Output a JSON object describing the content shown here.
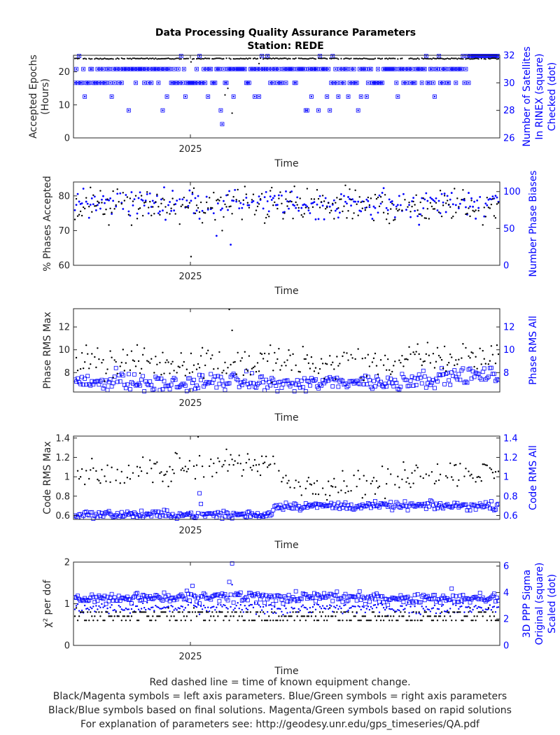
{
  "figure": {
    "title_line1": "Data Processing Quality Assurance Parameters",
    "title_line2": "Station: REDE"
  },
  "colors": {
    "left": "#000000",
    "right": "#0000ff",
    "axis": "#262626"
  },
  "chart_data": [
    {
      "type": "scatter",
      "id": "epochs",
      "xlabel": "Time",
      "xticks": [
        "2025"
      ],
      "left": {
        "label": [
          "Accepted Epochs",
          "(Hours)"
        ],
        "ylim": [
          0,
          25
        ],
        "ticks": [
          0,
          10,
          20
        ],
        "marker": "dot",
        "mean": 24,
        "noise": 0.1,
        "dips": [
          23,
          22.5,
          15,
          7.5,
          13
        ]
      },
      "right": {
        "label": [
          "Number of Satellites",
          "In RINEX (square)",
          "Checked (dot)"
        ],
        "ylim": [
          26,
          32
        ],
        "ticks": [
          26,
          28,
          30,
          32
        ],
        "marker": "dot-and-square",
        "levels": [
          31,
          30,
          29,
          28,
          32
        ]
      }
    },
    {
      "type": "scatter",
      "id": "phases",
      "xlabel": "Time",
      "xticks": [
        "2025"
      ],
      "left": {
        "label": [
          "% Phases Accepted"
        ],
        "ylim": [
          60,
          84
        ],
        "ticks": [
          60,
          70,
          80
        ],
        "marker": "dot",
        "mean": 77,
        "noise": 2.5,
        "dips": [
          62.5,
          70,
          72
        ]
      },
      "right": {
        "label": [
          "Number Phase Biases"
        ],
        "ylim": [
          0,
          113
        ],
        "ticks": [
          0,
          50,
          100
        ],
        "marker": "dot",
        "mean": 85,
        "noise": 9,
        "dips": [
          28,
          40,
          55
        ]
      }
    },
    {
      "type": "scatter",
      "id": "phase-rms",
      "xlabel": "Time",
      "xticks": [
        "2025"
      ],
      "left": {
        "label": [
          "Phase RMS Max"
        ],
        "ylim": [
          6.3,
          13.6
        ],
        "ticks": [
          8,
          10,
          12
        ],
        "marker": "dot",
        "mean": 8.9,
        "noise": 0.7,
        "dips": [
          13.6,
          11.7,
          11.5
        ]
      },
      "right": {
        "label": [
          "Phase RMS All"
        ],
        "ylim": [
          6.3,
          13.6
        ],
        "ticks": [
          8,
          10,
          12
        ],
        "marker": "square",
        "mean": 7.1,
        "noise": 0.35,
        "dips": [
          8.4,
          8.2
        ]
      }
    },
    {
      "type": "scatter",
      "id": "code-rms",
      "xlabel": "Time",
      "xticks": [
        "2025"
      ],
      "left": {
        "label": [
          "Code RMS Max"
        ],
        "ylim": [
          0.56,
          1.42
        ],
        "ticks": [
          0.6,
          0.8,
          1,
          1.2,
          1.4
        ],
        "marker": "dot",
        "mean": 1.03,
        "noise": 0.07,
        "dips": [
          1.42,
          1.25,
          0.82
        ]
      },
      "right": {
        "label": [
          "Code RMS All"
        ],
        "ylim": [
          0.56,
          1.42
        ],
        "ticks": [
          0.6,
          0.8,
          1,
          1.2,
          1.4
        ],
        "marker": "square",
        "mean": 0.66,
        "noise": 0.02,
        "dips": [
          0.83,
          0.72,
          0.57
        ]
      }
    },
    {
      "type": "scatter",
      "id": "chi2",
      "xlabel": "Time",
      "xticks": [
        "2025"
      ],
      "left": {
        "label": [
          "χ² per dof"
        ],
        "ylim": [
          0,
          2
        ],
        "ticks": [
          0,
          1,
          2
        ],
        "marker": "dot",
        "mean": 0.72,
        "noise": 0.06,
        "dips": [
          0.9,
          0.6
        ]
      },
      "right": {
        "label": [
          "3D PPP Sigma",
          "Original (square)",
          "Scaled (dot)"
        ],
        "ylim": [
          0,
          6.3
        ],
        "ticks": [
          0,
          2,
          4,
          6
        ],
        "marker": "dot-and-square",
        "mean": 3.6,
        "noise": 0.2,
        "dips": [
          6.2,
          4.8,
          4.5,
          4.3
        ]
      }
    }
  ],
  "footer": {
    "line1": "Red dashed line = time of known equipment change.",
    "line2": "Black/Magenta symbols = left axis parameters. Blue/Green symbols = right axis parameters",
    "line3": "Black/Blue symbols based on final solutions.  Magenta/Green symbols based on rapid solutions",
    "line4": "For explanation of parameters see: http://geodesy.unr.edu/gps_timeseries/QA.pdf"
  }
}
